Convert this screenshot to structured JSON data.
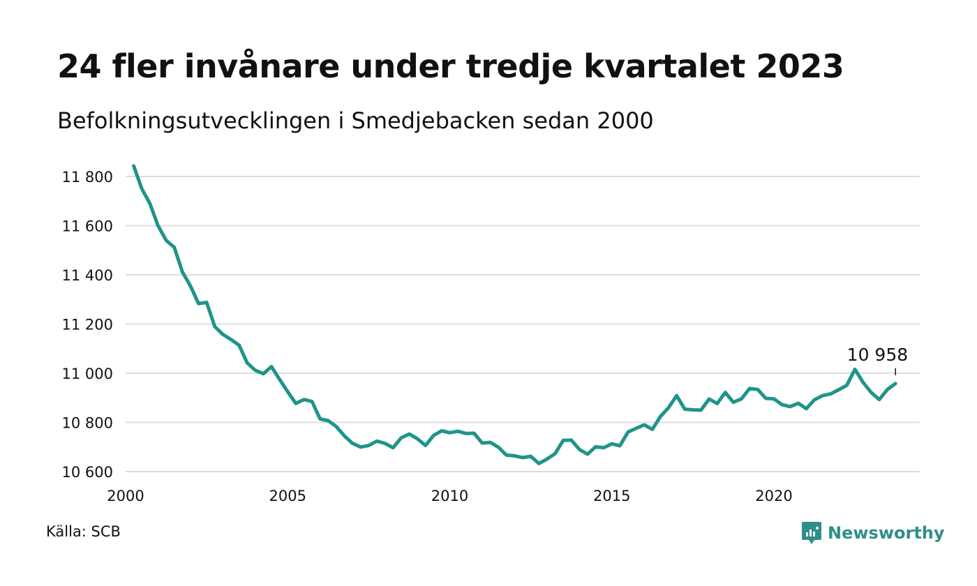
{
  "header": {
    "title": "24 fler invånare under tredje kvartalet 2023",
    "subtitle": "Befolkningsutvecklingen i Smedjebacken sedan 2000"
  },
  "footer": {
    "source": "Källa: SCB",
    "brand": "Newsworthy",
    "brand_icon": "newsworthy-logo-icon",
    "brand_color": "#2f8f8a"
  },
  "colors": {
    "line": "#1f9488",
    "grid": "#dddddd",
    "text": "#111111"
  },
  "chart_data": {
    "type": "line",
    "xlim": [
      2000,
      2024.5
    ],
    "ylim": [
      10600,
      11800
    ],
    "yticks": [
      10600,
      10800,
      11000,
      11200,
      11400,
      11600,
      11800
    ],
    "ytick_labels": [
      "10 600",
      "10 800",
      "11 000",
      "11 200",
      "11 400",
      "11 600",
      "11 800"
    ],
    "xticks": [
      2000,
      2005,
      2010,
      2015,
      2020
    ],
    "xtick_labels": [
      "2000",
      "2005",
      "2010",
      "2015",
      "2020"
    ],
    "grid": "horizontal",
    "end_label": "10 958",
    "series": [
      {
        "x": [
          2000.25,
          2000.5,
          2000.75,
          2001.0,
          2001.25,
          2001.5,
          2001.75,
          2002.0,
          2002.25,
          2002.5,
          2002.75,
          2003.0,
          2003.25,
          2003.5,
          2003.75,
          2004.0,
          2004.25,
          2004.5,
          2004.75,
          2005.0,
          2005.25,
          2005.5,
          2005.75,
          2006.0,
          2006.25,
          2006.5,
          2006.75,
          2007.0,
          2007.25,
          2007.5,
          2007.75,
          2008.0,
          2008.25,
          2008.5,
          2008.75,
          2009.0,
          2009.25,
          2009.5,
          2009.75,
          2010.0,
          2010.25,
          2010.5,
          2010.75,
          2011.0,
          2011.25,
          2011.5,
          2011.75,
          2012.0,
          2012.25,
          2012.5,
          2012.75,
          2013.0,
          2013.25,
          2013.5,
          2013.75,
          2014.0,
          2014.25,
          2014.5,
          2014.75,
          2015.0,
          2015.25,
          2015.5,
          2015.75,
          2016.0,
          2016.25,
          2016.5,
          2016.75,
          2017.0,
          2017.25,
          2017.5,
          2017.75,
          2018.0,
          2018.25,
          2018.5,
          2018.75,
          2019.0,
          2019.25,
          2019.5,
          2019.75,
          2020.0,
          2020.25,
          2020.5,
          2020.75,
          2021.0,
          2021.25,
          2021.5,
          2021.75,
          2022.0,
          2022.25,
          2022.5,
          2022.75,
          2023.0,
          2023.25,
          2023.5,
          2023.75
        ],
        "values": [
          11843,
          11750,
          11690,
          11600,
          11540,
          11512,
          11412,
          11355,
          11283,
          11288,
          11190,
          11158,
          11137,
          11114,
          11042,
          11012,
          10998,
          11027,
          10975,
          10925,
          10877,
          10893,
          10885,
          10814,
          10807,
          10783,
          10745,
          10715,
          10700,
          10706,
          10724,
          10715,
          10697,
          10737,
          10753,
          10734,
          10706,
          10747,
          10766,
          10758,
          10764,
          10755,
          10756,
          10716,
          10719,
          10699,
          10667,
          10664,
          10657,
          10662,
          10633,
          10651,
          10673,
          10727,
          10728,
          10690,
          10671,
          10701,
          10697,
          10713,
          10705,
          10761,
          10776,
          10790,
          10772,
          10824,
          10860,
          10909,
          10854,
          10851,
          10850,
          10895,
          10877,
          10922,
          10882,
          10896,
          10938,
          10934,
          10898,
          10896,
          10872,
          10864,
          10878,
          10856,
          10892,
          10909,
          10916,
          10933,
          10951,
          11016,
          10963,
          10922,
          10893,
          10934,
          10958
        ]
      }
    ]
  }
}
